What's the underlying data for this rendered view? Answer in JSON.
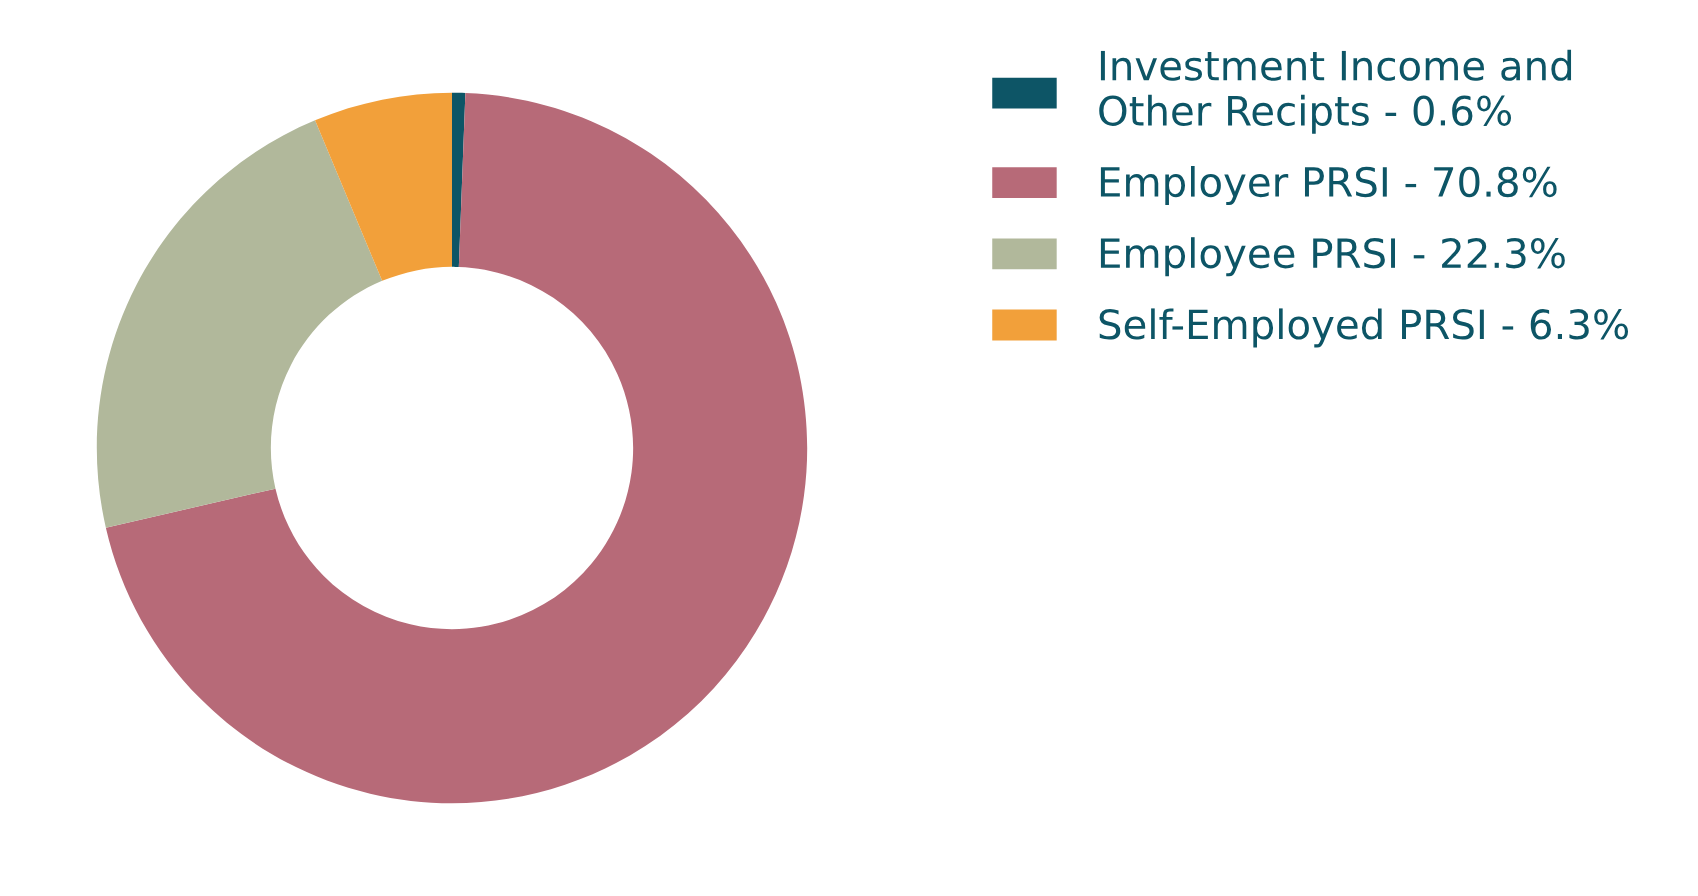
{
  "chart_data": {
    "type": "donut",
    "categories": [
      "Investment Income and\nOther Recipts - 0.6%",
      "Employer PRSI - 70.8%",
      "Employee PRSI - 22.3%",
      "Self-Employed PRSI - 6.3%"
    ],
    "values": [
      0.6,
      70.8,
      22.3,
      6.3
    ],
    "colors": [
      "#0d5566",
      "#b76a78",
      "#b1b89b",
      "#f2a03a"
    ],
    "legend": "right"
  }
}
